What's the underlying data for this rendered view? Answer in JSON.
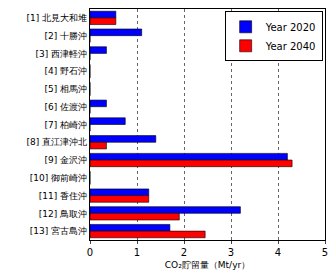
{
  "chart_data": {
    "type": "bar",
    "orientation": "horizontal",
    "x_label": "CO₂貯留量（Mt/yr）",
    "categories": [
      "[1] 北見大和堆",
      "[2] 十勝沖",
      "[3] 西津軽沖",
      "[4] 野石沖",
      "[5] 相馬沖",
      "[6] 佐渡沖",
      "[7] 柏崎沖",
      "[8] 直江津沖北",
      "[9] 金沢沖",
      "[10] 御前崎沖",
      "[11] 香住沖",
      "[12] 鳥取沖",
      "[13] 宮古島沖"
    ],
    "series": [
      {
        "name": "Year 2020",
        "color": "#0000ff",
        "values": [
          0.55,
          1.1,
          0.35,
          0,
          0,
          0.35,
          0.75,
          1.4,
          4.2,
          0,
          1.25,
          3.2,
          1.7
        ]
      },
      {
        "name": "Year 2040",
        "color": "#ff0000",
        "values": [
          0.55,
          0,
          0,
          0,
          0,
          0,
          0,
          0.35,
          4.3,
          0,
          1.25,
          1.9,
          2.45
        ]
      }
    ],
    "xlim": [
      0,
      5
    ],
    "xticks": [
      0,
      1,
      2,
      3,
      4,
      5
    ],
    "grid": true,
    "legend": "top-right"
  }
}
